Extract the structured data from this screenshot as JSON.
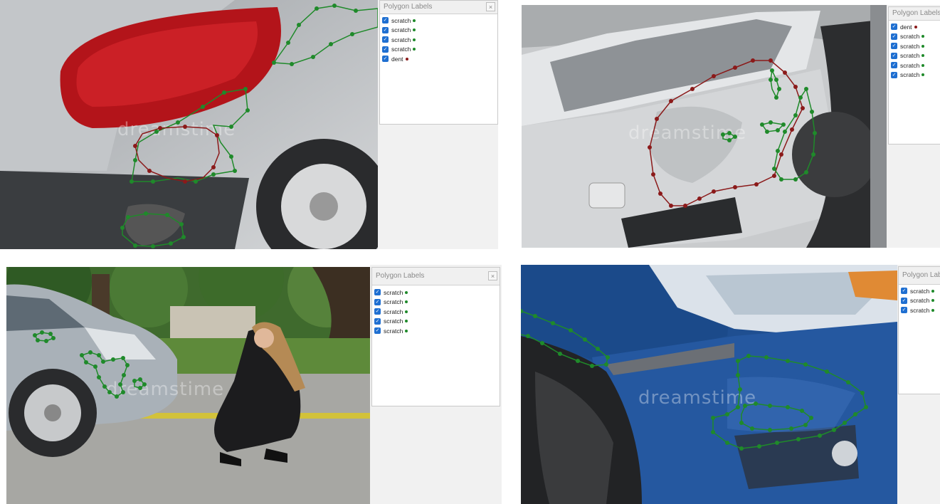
{
  "panels": {
    "tl": {
      "title": "Polygon Labels",
      "close": "×",
      "labels": [
        {
          "name": "scratch",
          "color": "#1f8a2a"
        },
        {
          "name": "scratch",
          "color": "#1f8a2a"
        },
        {
          "name": "scratch",
          "color": "#1f8a2a"
        },
        {
          "name": "scratch",
          "color": "#1f8a2a"
        },
        {
          "name": "dent",
          "color": "#8b1a1a"
        }
      ]
    },
    "tr": {
      "title": "Polygon Labels",
      "labels": [
        {
          "name": "dent",
          "color": "#8b1a1a"
        },
        {
          "name": "scratch",
          "color": "#1f8a2a"
        },
        {
          "name": "scratch",
          "color": "#1f8a2a"
        },
        {
          "name": "scratch",
          "color": "#1f8a2a"
        },
        {
          "name": "scratch",
          "color": "#1f8a2a"
        },
        {
          "name": "scratch",
          "color": "#1f8a2a"
        }
      ]
    },
    "bl": {
      "title": "Polygon Labels",
      "close": "×",
      "labels": [
        {
          "name": "scratch",
          "color": "#1f8a2a"
        },
        {
          "name": "scratch",
          "color": "#1f8a2a"
        },
        {
          "name": "scratch",
          "color": "#1f8a2a"
        },
        {
          "name": "scratch",
          "color": "#1f8a2a"
        },
        {
          "name": "scratch",
          "color": "#1f8a2a"
        }
      ]
    },
    "br": {
      "title": "Polygon Labels",
      "labels": [
        {
          "name": "scratch",
          "color": "#1f8a2a"
        },
        {
          "name": "scratch",
          "color": "#1f8a2a"
        },
        {
          "name": "scratch",
          "color": "#1f8a2a"
        }
      ]
    }
  },
  "watermark": "dreamstime",
  "colors": {
    "scratch": "#1f8a2a",
    "dent": "#8b1a1a",
    "checkbox": "#1f6fd1"
  }
}
